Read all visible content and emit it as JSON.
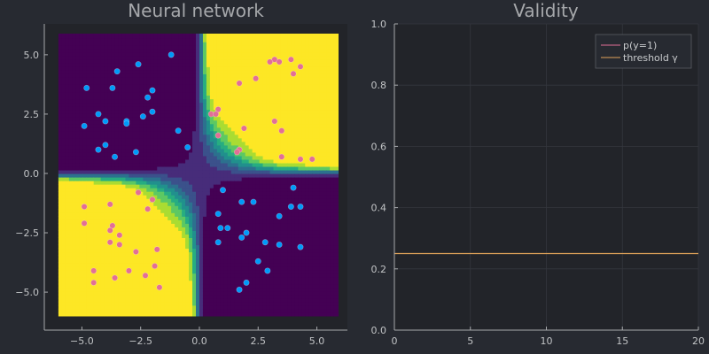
{
  "chart_data": [
    {
      "type": "scatter",
      "title": "Neural network",
      "xlabel": "",
      "ylabel": "",
      "xlim": [
        -6.6,
        6.3
      ],
      "ylim": [
        -6.6,
        6.3
      ],
      "xticks": [
        -5.0,
        -2.5,
        0.0,
        2.5,
        5.0
      ],
      "xtick_labels": [
        "−5.0",
        "−2.5",
        "0.0",
        "2.5",
        "5.0"
      ],
      "yticks": [
        -5.0,
        -2.5,
        0.0,
        2.5,
        5.0
      ],
      "ytick_labels": [
        "−5.0",
        "−2.5",
        "0.0",
        "2.5",
        "5.0"
      ],
      "background": "filled contour of p(y=1) over the grid [-6,6]x[-6,6]: high (yellow) in the upper-right and lower-left quadrants, low (purple) elsewhere",
      "colormap": [
        "#440154",
        "#472c7a",
        "#3b518b",
        "#2c718e",
        "#21908d",
        "#27ad81",
        "#5cc863",
        "#aadc32",
        "#fde725"
      ],
      "series": [
        {
          "class": 0,
          "color": "#009af9",
          "points": [
            [
              -4.8,
              3.6
            ],
            [
              -3.5,
              4.3
            ],
            [
              -2.6,
              4.6
            ],
            [
              -1.2,
              5.0
            ],
            [
              -3.7,
              3.6
            ],
            [
              -2.0,
              3.5
            ],
            [
              -2.2,
              3.2
            ],
            [
              -4.3,
              2.5
            ],
            [
              -2.0,
              2.6
            ],
            [
              -2.4,
              2.4
            ],
            [
              -3.1,
              2.2
            ],
            [
              -4.0,
              2.2
            ],
            [
              -4.9,
              2.0
            ],
            [
              -3.1,
              2.1
            ],
            [
              -0.9,
              1.8
            ],
            [
              -4.0,
              1.2
            ],
            [
              -0.5,
              1.1
            ],
            [
              -4.3,
              1.0
            ],
            [
              -2.7,
              0.9
            ],
            [
              -3.6,
              0.7
            ],
            [
              1.0,
              -0.7
            ],
            [
              4.0,
              -0.6
            ],
            [
              1.8,
              -1.2
            ],
            [
              2.3,
              -1.2
            ],
            [
              3.9,
              -1.4
            ],
            [
              4.3,
              -1.4
            ],
            [
              0.8,
              -1.7
            ],
            [
              3.4,
              -1.8
            ],
            [
              0.9,
              -2.3
            ],
            [
              1.2,
              -2.3
            ],
            [
              2.0,
              -2.5
            ],
            [
              1.8,
              -2.7
            ],
            [
              0.8,
              -2.9
            ],
            [
              2.8,
              -2.9
            ],
            [
              3.4,
              -3.0
            ],
            [
              4.3,
              -3.1
            ],
            [
              2.5,
              -3.7
            ],
            [
              2.9,
              -4.1
            ],
            [
              2.0,
              -4.6
            ],
            [
              1.7,
              -4.9
            ]
          ]
        },
        {
          "class": 1,
          "color": "#e26f96",
          "points": [
            [
              3.2,
              4.8
            ],
            [
              3.4,
              4.7
            ],
            [
              3.9,
              4.8
            ],
            [
              4.3,
              4.5
            ],
            [
              3.0,
              4.7
            ],
            [
              4.0,
              4.2
            ],
            [
              2.4,
              4.0
            ],
            [
              1.7,
              3.8
            ],
            [
              0.8,
              2.7
            ],
            [
              0.5,
              2.5
            ],
            [
              0.7,
              2.5
            ],
            [
              3.2,
              2.2
            ],
            [
              1.9,
              1.9
            ],
            [
              3.5,
              1.8
            ],
            [
              0.8,
              1.6
            ],
            [
              1.7,
              1.0
            ],
            [
              1.6,
              0.9
            ],
            [
              3.5,
              0.7
            ],
            [
              4.3,
              0.6
            ],
            [
              4.8,
              0.6
            ],
            [
              -2.6,
              -0.8
            ],
            [
              -2.0,
              -1.1
            ],
            [
              -3.8,
              -1.3
            ],
            [
              -4.9,
              -1.4
            ],
            [
              -2.2,
              -1.5
            ],
            [
              -4.9,
              -2.1
            ],
            [
              -3.7,
              -2.2
            ],
            [
              -3.8,
              -2.4
            ],
            [
              -3.4,
              -2.6
            ],
            [
              -3.8,
              -2.9
            ],
            [
              -3.4,
              -3.0
            ],
            [
              -1.8,
              -3.2
            ],
            [
              -2.7,
              -3.3
            ],
            [
              -1.9,
              -3.9
            ],
            [
              -4.5,
              -4.1
            ],
            [
              -3.0,
              -4.1
            ],
            [
              -2.3,
              -4.3
            ],
            [
              -3.6,
              -4.4
            ],
            [
              -4.5,
              -4.6
            ],
            [
              -1.7,
              -4.8
            ]
          ]
        }
      ]
    },
    {
      "type": "line",
      "title": "Validity",
      "xlabel": "",
      "ylabel": "",
      "xlim": [
        0,
        20
      ],
      "ylim": [
        0,
        1
      ],
      "xticks": [
        0,
        5,
        10,
        15,
        20
      ],
      "xtick_labels": [
        "0",
        "5",
        "10",
        "15",
        "20"
      ],
      "yticks": [
        0.0,
        0.2,
        0.4,
        0.6,
        0.8,
        1.0
      ],
      "ytick_labels": [
        "0.0",
        "0.2",
        "0.4",
        "0.6",
        "0.8",
        "1.0"
      ],
      "legend_position": "top-right",
      "grid": true,
      "series": [
        {
          "name": "p(y=1)",
          "color": "#e26f96",
          "x": [],
          "values": []
        },
        {
          "name": "threshold γ",
          "color": "#e0a35a",
          "x": [
            0,
            20
          ],
          "values": [
            0.25,
            0.25
          ]
        }
      ]
    }
  ]
}
